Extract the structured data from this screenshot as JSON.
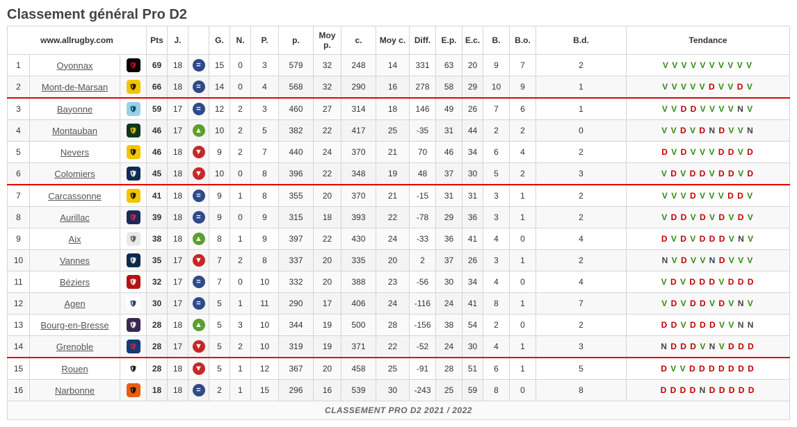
{
  "title": "Classement général Pro D2",
  "site": "www.allrugby.com",
  "footer": "CLASSEMENT PRO D2 2021 / 2022",
  "headers": {
    "pts": "Pts",
    "j": "J.",
    "g": "G.",
    "n": "N.",
    "p": "P.",
    "pp": "p.",
    "mp": "Moy p.",
    "c": "c.",
    "mc": "Moy c.",
    "diff": "Diff.",
    "ep": "E.p.",
    "ec": "E.c.",
    "b": "B.",
    "bo": "B.o.",
    "bd": "B.d.",
    "tendance": "Tendance"
  },
  "trend_colors": {
    "up": "#5aa02c",
    "down": "#c62828",
    "same": "#2e4a8a"
  },
  "result_colors": {
    "V": "#2e8b12",
    "D": "#c20000",
    "N": "#444444"
  },
  "zones": [
    3,
    7,
    15
  ],
  "rows": [
    {
      "rank": 1,
      "team": "Oyonnax",
      "logo_bg": "#000000",
      "logo_fg": "#e2001a",
      "pts": 69,
      "j": 18,
      "trend": "same",
      "g": 15,
      "n": 0,
      "p": 3,
      "pp": 579,
      "mp": 32,
      "c": 248,
      "mc": 14,
      "diff": 331,
      "ep": 63,
      "ec": 20,
      "b": 9,
      "bo": 7,
      "bd": 2,
      "tendance": "VVVVVVVVVV"
    },
    {
      "rank": 2,
      "team": "Mont-de-Marsan",
      "logo_bg": "#f2c500",
      "logo_fg": "#000000",
      "pts": 66,
      "j": 18,
      "trend": "same",
      "g": 14,
      "n": 0,
      "p": 4,
      "pp": 568,
      "mp": 32,
      "c": 290,
      "mc": 16,
      "diff": 278,
      "ep": 58,
      "ec": 29,
      "b": 10,
      "bo": 9,
      "bd": 1,
      "tendance": "VVVVVDVVDV"
    },
    {
      "rank": 3,
      "team": "Bayonne",
      "logo_bg": "#9ad0e6",
      "logo_fg": "#003a63",
      "pts": 59,
      "j": 17,
      "trend": "same",
      "g": 12,
      "n": 2,
      "p": 3,
      "pp": 460,
      "mp": 27,
      "c": 314,
      "mc": 18,
      "diff": 146,
      "ep": 49,
      "ec": 26,
      "b": 7,
      "bo": 6,
      "bd": 1,
      "tendance": "VVDDVVVVNV"
    },
    {
      "rank": 4,
      "team": "Montauban",
      "logo_bg": "#10361c",
      "logo_fg": "#f4c400",
      "pts": 46,
      "j": 17,
      "trend": "up",
      "g": 10,
      "n": 2,
      "p": 5,
      "pp": 382,
      "mp": 22,
      "c": 417,
      "mc": 25,
      "diff": -35,
      "ep": 31,
      "ec": 44,
      "b": 2,
      "bo": 2,
      "bd": 0,
      "tendance": "VVDVDNDVVN"
    },
    {
      "rank": 5,
      "team": "Nevers",
      "logo_bg": "#f4c400",
      "logo_fg": "#000000",
      "pts": 46,
      "j": 18,
      "trend": "down",
      "g": 9,
      "n": 2,
      "p": 7,
      "pp": 440,
      "mp": 24,
      "c": 370,
      "mc": 21,
      "diff": 70,
      "ep": 46,
      "ec": 34,
      "b": 6,
      "bo": 4,
      "bd": 2,
      "tendance": "DVDVVVDDVD"
    },
    {
      "rank": 6,
      "team": "Colomiers",
      "logo_bg": "#0e2d55",
      "logo_fg": "#ffffff",
      "pts": 45,
      "j": 18,
      "trend": "down",
      "g": 10,
      "n": 0,
      "p": 8,
      "pp": 396,
      "mp": 22,
      "c": 348,
      "mc": 19,
      "diff": 48,
      "ep": 37,
      "ec": 30,
      "b": 5,
      "bo": 2,
      "bd": 3,
      "tendance": "VDVDDVDDVD"
    },
    {
      "rank": 7,
      "team": "Carcassonne",
      "logo_bg": "#f2c500",
      "logo_fg": "#000000",
      "pts": 41,
      "j": 18,
      "trend": "same",
      "g": 9,
      "n": 1,
      "p": 8,
      "pp": 355,
      "mp": 20,
      "c": 370,
      "mc": 21,
      "diff": -15,
      "ep": 31,
      "ec": 31,
      "b": 3,
      "bo": 1,
      "bd": 2,
      "tendance": "VVVDVVVDDV"
    },
    {
      "rank": 8,
      "team": "Aurillac",
      "logo_bg": "#1a2a5c",
      "logo_fg": "#e0292a",
      "pts": 39,
      "j": 18,
      "trend": "same",
      "g": 9,
      "n": 0,
      "p": 9,
      "pp": 315,
      "mp": 18,
      "c": 393,
      "mc": 22,
      "diff": -78,
      "ep": 29,
      "ec": 36,
      "b": 3,
      "bo": 1,
      "bd": 2,
      "tendance": "VDDVDVDVDV"
    },
    {
      "rank": 9,
      "team": "Aix",
      "logo_bg": "#e9e9e9",
      "logo_fg": "#555555",
      "pts": 38,
      "j": 18,
      "trend": "up",
      "g": 8,
      "n": 1,
      "p": 9,
      "pp": 397,
      "mp": 22,
      "c": 430,
      "mc": 24,
      "diff": -33,
      "ep": 36,
      "ec": 41,
      "b": 4,
      "bo": 0,
      "bd": 4,
      "tendance": "DVDVDDDVNV"
    },
    {
      "rank": 10,
      "team": "Vannes",
      "logo_bg": "#0b2a4a",
      "logo_fg": "#ffffff",
      "pts": 35,
      "j": 17,
      "trend": "down",
      "g": 7,
      "n": 2,
      "p": 8,
      "pp": 337,
      "mp": 20,
      "c": 335,
      "mc": 20,
      "diff": 2,
      "ep": 37,
      "ec": 26,
      "b": 3,
      "bo": 1,
      "bd": 2,
      "tendance": "NVDVVNDVVV"
    },
    {
      "rank": 11,
      "team": "Béziers",
      "logo_bg": "#b01414",
      "logo_fg": "#ffffff",
      "pts": 32,
      "j": 17,
      "trend": "same",
      "g": 7,
      "n": 0,
      "p": 10,
      "pp": 332,
      "mp": 20,
      "c": 388,
      "mc": 23,
      "diff": -56,
      "ep": 30,
      "ec": 34,
      "b": 4,
      "bo": 0,
      "bd": 4,
      "tendance": "VDVDDDVDDD"
    },
    {
      "rank": 12,
      "team": "Agen",
      "logo_bg": "#ffffff",
      "logo_fg": "#0b2a4a",
      "pts": 30,
      "j": 17,
      "trend": "same",
      "g": 5,
      "n": 1,
      "p": 11,
      "pp": 290,
      "mp": 17,
      "c": 406,
      "mc": 24,
      "diff": -116,
      "ep": 24,
      "ec": 41,
      "b": 8,
      "bo": 1,
      "bd": 7,
      "tendance": "VDVDDVDVNV"
    },
    {
      "rank": 13,
      "team": "Bourg-en-Bresse",
      "logo_bg": "#3a2851",
      "logo_fg": "#ffffff",
      "pts": 28,
      "j": 18,
      "trend": "up",
      "g": 5,
      "n": 3,
      "p": 10,
      "pp": 344,
      "mp": 19,
      "c": 500,
      "mc": 28,
      "diff": -156,
      "ep": 38,
      "ec": 54,
      "b": 2,
      "bo": 0,
      "bd": 2,
      "tendance": "DDVDDDVVNN"
    },
    {
      "rank": 14,
      "team": "Grenoble",
      "logo_bg": "#143a77",
      "logo_fg": "#d2222d",
      "pts": 28,
      "j": 17,
      "trend": "down",
      "g": 5,
      "n": 2,
      "p": 10,
      "pp": 319,
      "mp": 19,
      "c": 371,
      "mc": 22,
      "diff": -52,
      "ep": 24,
      "ec": 30,
      "b": 4,
      "bo": 1,
      "bd": 3,
      "tendance": "NDDDVNVDDD"
    },
    {
      "rank": 15,
      "team": "Rouen",
      "logo_bg": "#ffffff",
      "logo_fg": "#000000",
      "pts": 28,
      "j": 18,
      "trend": "down",
      "g": 5,
      "n": 1,
      "p": 12,
      "pp": 367,
      "mp": 20,
      "c": 458,
      "mc": 25,
      "diff": -91,
      "ep": 28,
      "ec": 51,
      "b": 6,
      "bo": 1,
      "bd": 5,
      "tendance": "DVVDDDDDDD"
    },
    {
      "rank": 16,
      "team": "Narbonne",
      "logo_bg": "#e85c13",
      "logo_fg": "#000000",
      "pts": 18,
      "j": 18,
      "trend": "same",
      "g": 2,
      "n": 1,
      "p": 15,
      "pp": 296,
      "mp": 16,
      "c": 539,
      "mc": 30,
      "diff": -243,
      "ep": 25,
      "ec": 59,
      "b": 8,
      "bo": 0,
      "bd": 8,
      "tendance": "DDDDNDDDDD"
    }
  ]
}
